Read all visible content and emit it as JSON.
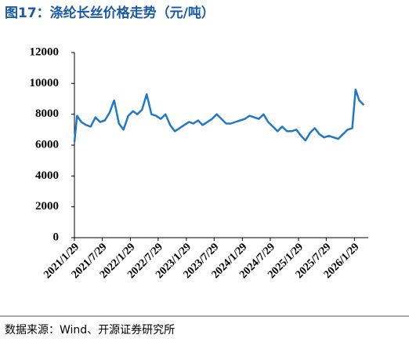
{
  "chart_data": {
    "type": "line",
    "title": "图17：涤纶长丝价格走势（元/吨）",
    "source": "数据来源：Wind、开源证券研究所",
    "x": [
      "2021/1/29",
      "2021/2/15",
      "2021/3/15",
      "2021/4/15",
      "2021/5/15",
      "2021/6/15",
      "2021/7/15",
      "2021/8/15",
      "2021/9/15",
      "2021/10/15",
      "2021/11/15",
      "2021/12/15",
      "2022/1/15",
      "2022/2/15",
      "2022/3/15",
      "2022/4/15",
      "2022/5/15",
      "2022/6/15",
      "2022/7/15",
      "2022/8/15",
      "2022/9/15",
      "2022/10/15",
      "2022/11/15",
      "2022/12/15",
      "2023/1/15",
      "2023/2/15",
      "2023/3/15",
      "2023/4/15",
      "2023/5/15",
      "2023/6/15",
      "2023/7/15",
      "2023/8/15",
      "2023/9/15",
      "2023/10/15",
      "2023/11/15",
      "2023/12/15",
      "2024/1/15",
      "2024/2/15",
      "2024/3/15",
      "2024/4/15",
      "2024/5/15",
      "2024/6/15",
      "2024/7/15",
      "2024/8/15",
      "2024/9/15",
      "2024/10/15",
      "2024/11/15",
      "2024/12/15",
      "2025/1/15",
      "2025/2/15",
      "2025/3/15",
      "2025/4/15",
      "2025/5/15",
      "2025/6/15",
      "2025/7/15",
      "2025/8/15",
      "2025/9/15",
      "2025/10/15",
      "2025/11/15",
      "2025/12/15",
      "2026/1/15",
      "2026/2/5",
      "2026/3/1",
      "2026/4/1"
    ],
    "series": [
      {
        "name": "涤纶长丝价格",
        "color": "#1f78c8",
        "values": [
          6200,
          7900,
          7500,
          7300,
          7200,
          7800,
          7500,
          7600,
          8100,
          8900,
          7400,
          7000,
          7900,
          8200,
          8000,
          8300,
          9300,
          8000,
          7900,
          7700,
          8000,
          7300,
          6900,
          7100,
          7300,
          7500,
          7400,
          7600,
          7300,
          7500,
          7700,
          8000,
          7700,
          7400,
          7400,
          7500,
          7600,
          7700,
          7900,
          7800,
          7700,
          8000,
          7500,
          7200,
          6900,
          7200,
          6900,
          6900,
          7000,
          6600,
          6300,
          6800,
          7100,
          6700,
          6500,
          6600,
          6500,
          6400,
          6700,
          7000,
          7100,
          9600,
          8900,
          8600
        ]
      }
    ],
    "xlim": [
      "2021/1/29",
      "2026/4/29"
    ],
    "xticks": [
      "2021/1/29",
      "2021/7/29",
      "2022/1/29",
      "2022/7/29",
      "2023/1/29",
      "2023/7/29",
      "2024/1/29",
      "2024/7/29",
      "2025/1/29",
      "2025/7/29",
      "2026/1/29"
    ],
    "ylim": [
      0,
      12000
    ],
    "yticks": [
      0,
      2000,
      4000,
      6000,
      8000,
      10000,
      12000
    ]
  }
}
